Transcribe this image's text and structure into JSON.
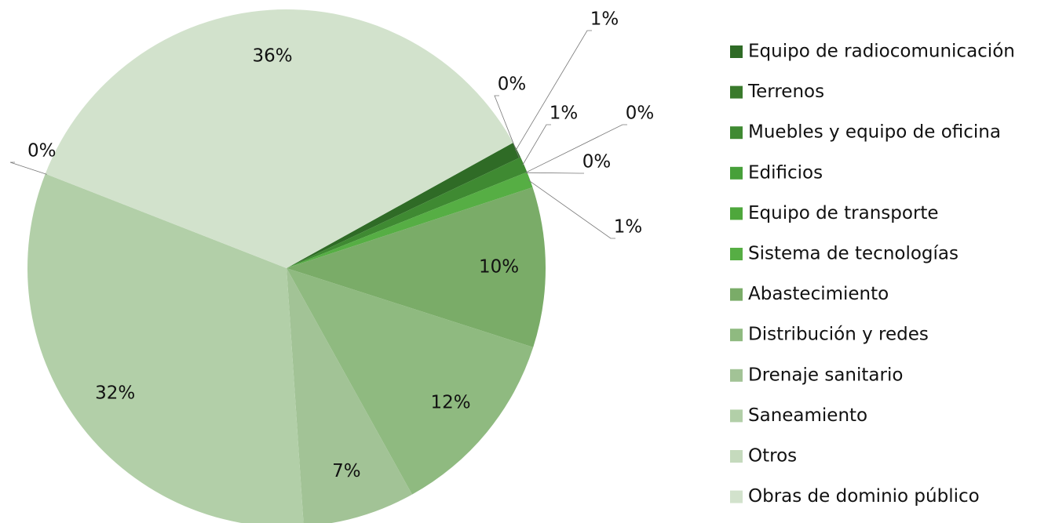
{
  "chart_data": {
    "type": "pie",
    "categories": [
      "Equipo de radiocomunicación",
      "Terrenos",
      "Muebles y equipo de oficina",
      "Edificios",
      "Equipo de transporte",
      "Sistema de tecnologías",
      "Abastecimiento",
      "Distribución y redes",
      "Drenaje sanitario",
      "Saneamiento",
      "Otros",
      "Obras de dominio público"
    ],
    "values": [
      1,
      0,
      1,
      0,
      0,
      1,
      10,
      12,
      7,
      32,
      0,
      36
    ],
    "value_labels": [
      "1%",
      "0%",
      "1%",
      "0%",
      "0%",
      "1%",
      "10%",
      "12%",
      "7%",
      "32%",
      "0%",
      "36%"
    ],
    "colors": [
      "#2f6b26",
      "#3a7a2c",
      "#3f8a32",
      "#47a03a",
      "#4ea73c",
      "#56ae44",
      "#7aac68",
      "#8fba80",
      "#a2c396",
      "#b2cfa8",
      "#c5dabd",
      "#d2e2cc"
    ],
    "start_angle": 61,
    "legend": "right"
  }
}
